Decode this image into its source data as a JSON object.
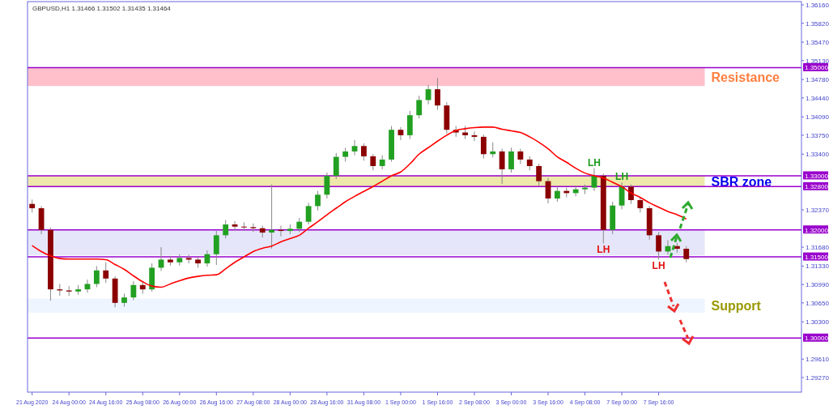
{
  "chart_data": {
    "type": "candlestick",
    "title": "GBPUSD,H1  1.31466 1.31502 1.31435 1.31464",
    "categories": [
      "21 Aug 2020",
      null,
      null,
      null,
      "24 Aug 00:00",
      null,
      null,
      null,
      "24 Aug 16:00",
      null,
      null,
      null,
      "25 Aug 08:00",
      null,
      null,
      null,
      "26 Aug 00:00",
      null,
      null,
      null,
      "26 Aug 16:00",
      null,
      null,
      null,
      "27 Aug 08:00",
      null,
      null,
      null,
      "28 Aug 00:00",
      null,
      null,
      null,
      "28 Aug 16:00",
      null,
      null,
      null,
      "31 Aug 08:00",
      null,
      null,
      null,
      "1 Sep 00:00",
      null,
      null,
      null,
      "1 Sep 16:00",
      null,
      null,
      null,
      "2 Sep 08:00",
      null,
      null,
      null,
      "3 Sep 00:00",
      null,
      null,
      null,
      "3 Sep 16:00",
      null,
      null,
      null,
      "4 Sep 08:00",
      null,
      null,
      null,
      "7 Sep 00:00",
      null,
      null,
      null,
      "7 Sep 16:00",
      null,
      null,
      null,
      null,
      null,
      null,
      null,
      null,
      null,
      null,
      null,
      null,
      null,
      null,
      null
    ],
    "ohlc": [
      [
        1.3248,
        1.3256,
        1.3232,
        1.324
      ],
      [
        1.324,
        1.3244,
        1.3192,
        1.32
      ],
      [
        1.32,
        1.3204,
        1.3069,
        1.309
      ],
      [
        1.309,
        1.31,
        1.3078,
        1.3088
      ],
      [
        1.3088,
        1.3096,
        1.3078,
        1.3086
      ],
      [
        1.3086,
        1.3098,
        1.308,
        1.309
      ],
      [
        1.309,
        1.3108,
        1.3084,
        1.31
      ],
      [
        1.31,
        1.3133,
        1.3094,
        1.3125
      ],
      [
        1.3125,
        1.314,
        1.3102,
        1.311
      ],
      [
        1.311,
        1.3114,
        1.3057,
        1.3065
      ],
      [
        1.3065,
        1.3082,
        1.3058,
        1.3075
      ],
      [
        1.3075,
        1.3105,
        1.307,
        1.3098
      ],
      [
        1.3098,
        1.3104,
        1.3082,
        1.309
      ],
      [
        1.309,
        1.3138,
        1.3086,
        1.313
      ],
      [
        1.313,
        1.3168,
        1.3124,
        1.3145
      ],
      [
        1.3145,
        1.3152,
        1.3134,
        1.314
      ],
      [
        1.314,
        1.3155,
        1.3134,
        1.3148
      ],
      [
        1.3148,
        1.3154,
        1.3138,
        1.3145
      ],
      [
        1.3145,
        1.315,
        1.313,
        1.3138
      ],
      [
        1.3138,
        1.3162,
        1.3132,
        1.3155
      ],
      [
        1.3155,
        1.3198,
        1.3135,
        1.319
      ],
      [
        1.319,
        1.3218,
        1.3184,
        1.321
      ],
      [
        1.321,
        1.3216,
        1.3198,
        1.3206
      ],
      [
        1.3206,
        1.3214,
        1.3198,
        1.3205
      ],
      [
        1.3205,
        1.3212,
        1.3196,
        1.3203
      ],
      [
        1.3203,
        1.3208,
        1.3186,
        1.3195
      ],
      [
        1.3195,
        1.3284,
        1.3165,
        1.32
      ],
      [
        1.32,
        1.3208,
        1.3188,
        1.3198
      ],
      [
        1.3198,
        1.321,
        1.3192,
        1.3202
      ],
      [
        1.3202,
        1.3222,
        1.3196,
        1.3215
      ],
      [
        1.3215,
        1.325,
        1.321,
        1.3244
      ],
      [
        1.3244,
        1.3272,
        1.3236,
        1.3265
      ],
      [
        1.3265,
        1.3306,
        1.3258,
        1.33
      ],
      [
        1.33,
        1.3342,
        1.3294,
        1.3335
      ],
      [
        1.3335,
        1.3352,
        1.3326,
        1.3345
      ],
      [
        1.3345,
        1.3366,
        1.3338,
        1.3355
      ],
      [
        1.3355,
        1.336,
        1.3328,
        1.3336
      ],
      [
        1.3336,
        1.334,
        1.331,
        1.3318
      ],
      [
        1.3318,
        1.3338,
        1.3312,
        1.333
      ],
      [
        1.333,
        1.3392,
        1.3326,
        1.3385
      ],
      [
        1.3385,
        1.339,
        1.3366,
        1.3375
      ],
      [
        1.3375,
        1.342,
        1.3368,
        1.3412
      ],
      [
        1.3412,
        1.3448,
        1.3406,
        1.344
      ],
      [
        1.344,
        1.3468,
        1.3432,
        1.346
      ],
      [
        1.346,
        1.3481,
        1.3422,
        1.343
      ],
      [
        1.343,
        1.3436,
        1.3378,
        1.3385
      ],
      [
        1.3385,
        1.3392,
        1.3372,
        1.338
      ],
      [
        1.338,
        1.3392,
        1.3368,
        1.3375
      ],
      [
        1.3375,
        1.3382,
        1.3364,
        1.3372
      ],
      [
        1.3372,
        1.3376,
        1.3332,
        1.334
      ],
      [
        1.334,
        1.3362,
        1.3334,
        1.3345
      ],
      [
        1.3345,
        1.335,
        1.3285,
        1.3312
      ],
      [
        1.3312,
        1.3352,
        1.3306,
        1.3345
      ],
      [
        1.3345,
        1.335,
        1.3322,
        1.333
      ],
      [
        1.333,
        1.3336,
        1.331,
        1.3318
      ],
      [
        1.3318,
        1.3322,
        1.3282,
        1.329
      ],
      [
        1.329,
        1.3296,
        1.3249,
        1.3258
      ],
      [
        1.3258,
        1.328,
        1.3252,
        1.3272
      ],
      [
        1.3272,
        1.3278,
        1.326,
        1.3268
      ],
      [
        1.3268,
        1.3282,
        1.3262,
        1.3275
      ],
      [
        1.3275,
        1.3284,
        1.3266,
        1.3278
      ],
      [
        1.3278,
        1.3314,
        1.3272,
        1.33
      ],
      [
        1.33,
        1.3304,
        1.3175,
        1.32
      ],
      [
        1.32,
        1.3252,
        1.3192,
        1.3245
      ],
      [
        1.3245,
        1.3288,
        1.3238,
        1.328
      ],
      [
        1.328,
        1.3284,
        1.3248,
        1.3255
      ],
      [
        1.3255,
        1.326,
        1.3232,
        1.324
      ],
      [
        1.324,
        1.3244,
        1.3182,
        1.319
      ],
      [
        1.319,
        1.3196,
        1.3145,
        1.316
      ],
      [
        1.316,
        1.3181,
        1.3154,
        1.317
      ],
      [
        1.317,
        1.3176,
        1.3158,
        1.3165
      ],
      [
        1.3165,
        1.317,
        1.314,
        1.3146
      ],
      null,
      null,
      null,
      null,
      null,
      null,
      null,
      null,
      null,
      null,
      null,
      null
    ],
    "colors": [
      "#8b0000",
      "#8b0000",
      "#8b0000",
      "#8b0000",
      "#8b0000",
      "#22a022",
      "#22a022",
      "#22a022",
      "#8b0000",
      "#8b0000",
      "#22a022",
      "#22a022",
      "#8b0000",
      "#22a022",
      "#22a022",
      "#8b0000",
      "#22a022",
      "#8b0000",
      "#8b0000",
      "#22a022",
      "#22a022",
      "#22a022",
      "#8b0000",
      "#8b0000",
      "#8b0000",
      "#8b0000",
      "#22a022",
      "#8b0000",
      "#22a022",
      "#22a022",
      "#22a022",
      "#22a022",
      "#22a022",
      "#22a022",
      "#22a022",
      "#22a022",
      "#8b0000",
      "#8b0000",
      "#22a022",
      "#22a022",
      "#8b0000",
      "#22a022",
      "#22a022",
      "#22a022",
      "#8b0000",
      "#8b0000",
      "#8b0000",
      "#8b0000",
      "#8b0000",
      "#8b0000",
      "#22a022",
      "#8b0000",
      "#22a022",
      "#8b0000",
      "#8b0000",
      "#8b0000",
      "#8b0000",
      "#22a022",
      "#8b0000",
      "#22a022",
      "#22a022",
      "#22a022",
      "#8b0000",
      "#22a022",
      "#22a022",
      "#8b0000",
      "#8b0000",
      "#8b0000",
      "#8b0000",
      "#22a022",
      "#8b0000",
      "#8b0000",
      null,
      null,
      null,
      null,
      null,
      null,
      null,
      null,
      null,
      null,
      null,
      null
    ],
    "series": [
      {
        "type": "line",
        "color": "#ff0000",
        "values": [
          1.3171,
          1.316,
          1.3152,
          1.3147,
          1.3146,
          1.3146,
          1.3146,
          1.3146,
          1.3145,
          1.3136,
          1.3127,
          1.3115,
          1.3104,
          1.3096,
          1.3094,
          1.31,
          1.3106,
          1.3111,
          1.3114,
          1.3116,
          1.3117,
          1.3128,
          1.314,
          1.315,
          1.316,
          1.3166,
          1.317,
          1.3178,
          1.3184,
          1.319,
          1.3203,
          1.3215,
          1.3228,
          1.324,
          1.3252,
          1.3262,
          1.3271,
          1.328,
          1.329,
          1.33,
          1.3307,
          1.3322,
          1.334,
          1.3352,
          1.3364,
          1.3375,
          1.3384,
          1.3387,
          1.3389,
          1.339,
          1.339,
          1.3386,
          1.3383,
          1.338,
          1.3372,
          1.3362,
          1.335,
          1.3335,
          1.3325,
          1.3314,
          1.3305,
          1.33,
          1.3296,
          1.3288,
          1.328,
          1.3268,
          1.326,
          1.325,
          1.3242,
          1.3234,
          1.3228,
          1.322,
          null,
          null,
          null,
          null,
          null,
          null,
          null,
          null,
          null,
          null,
          null,
          null
        ]
      }
    ],
    "ylim": [
      1.29,
      1.3622
    ],
    "yticks": [
      {
        "value": 1.3616,
        "label": "1.36160"
      },
      {
        "value": 1.3582,
        "label": "1.35820"
      },
      {
        "value": 1.3547,
        "label": "1.35470"
      },
      {
        "value": 1.3513,
        "label": "1.35130"
      },
      {
        "value": 1.3478,
        "label": "1.34780"
      },
      {
        "value": 1.3444,
        "label": "1.34440"
      },
      {
        "value": 1.3409,
        "label": "1.34090"
      },
      {
        "value": 1.3375,
        "label": "1.33750"
      },
      {
        "value": 1.334,
        "label": "1.33400"
      },
      {
        "value": 1.3237,
        "label": "1.32370"
      },
      {
        "value": 1.3168,
        "label": "1.31680"
      },
      {
        "value": 1.3133,
        "label": "1.31330"
      },
      {
        "value": 1.3099,
        "label": "1.30990"
      },
      {
        "value": 1.3065,
        "label": "1.30650"
      },
      {
        "value": 1.303,
        "label": "1.30300"
      },
      {
        "value": 1.2961,
        "label": "1.29610"
      },
      {
        "value": 1.2927,
        "label": "1.29270"
      }
    ],
    "ref_lines": [
      {
        "axis": "y",
        "value": 1.35,
        "label": "1.35000",
        "color": "#9900cc"
      },
      {
        "axis": "y",
        "value": 1.33,
        "label": "1.33000",
        "color": "#9900cc"
      },
      {
        "axis": "y",
        "value": 1.328,
        "label": "1.32800",
        "color": "#9900cc"
      },
      {
        "axis": "y",
        "value": 1.32,
        "label": "1.32000",
        "color": "#9900cc"
      },
      {
        "axis": "y",
        "value": 1.315,
        "label": "1.31500",
        "color": "#9900cc"
      },
      {
        "axis": "y",
        "value": 1.3,
        "label": "1.30000",
        "color": "#9900cc"
      }
    ],
    "bands": [
      {
        "axis": "y",
        "from": 1.3466,
        "to": 1.35,
        "label": "Resistance",
        "color": "#ffc0cb"
      },
      {
        "axis": "y",
        "from": 1.328,
        "to": 1.33,
        "label": "SBR zone",
        "color": "#eee8aa"
      },
      {
        "axis": "y",
        "from": 1.3153,
        "to": 1.32,
        "label": null,
        "color": "#e6e6fa"
      },
      {
        "axis": "y",
        "from": 1.3047,
        "to": 1.3073,
        "label": "Support",
        "color": "#eef5ff"
      }
    ],
    "annotations": [
      {
        "text": "LH",
        "y": 1.3314
      },
      {
        "text": "LH",
        "y": 1.3288
      },
      {
        "text": "LH",
        "y": 1.3175
      },
      {
        "text": "LH",
        "y": 1.3145
      }
    ]
  }
}
